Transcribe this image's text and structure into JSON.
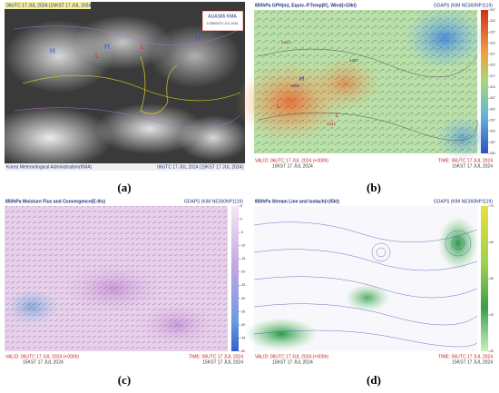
{
  "panels": [
    {
      "label": "(a)",
      "header_left": "06UTC 17 JUL 2024 (15KST 17 JUL 2024)",
      "header_right": "AUAS85 KMA",
      "header_right_2": "170600UTC JUL 2024",
      "footer_left": "Korea Meteorological Administration(KMA)",
      "footer_right": "06UTC 17 JUL 2024 (15KST 17 JUL 2024)",
      "map_labels": [
        "H",
        "L",
        "H",
        "L",
        "H"
      ]
    },
    {
      "label": "(b)",
      "title": "850hPa GPH(m), Equiv.-P.Temp(K), Wind(>10kt)",
      "model": "GDAPS (KIM NE360NP1119)",
      "valid": "VALID: 06UTC 17 JUL 2024 (+000h)",
      "valid_kst": "15KST 17 JUL 2024",
      "time": "TIME: 06UTC 17 JUL 2024",
      "time_kst": "15KST 17 JUL 2024",
      "map_labels": [
        "H",
        "L",
        "1500",
        "1414",
        "1497",
        "L",
        "1441"
      ],
      "colorbar": [
        347,
        342,
        337,
        332,
        327,
        322,
        317,
        312,
        307,
        302,
        297,
        292,
        287,
        282
      ]
    },
    {
      "label": "(c)",
      "title": "850hPa Moisture Flux and Convergence(E-9/s)",
      "model": "GDAPS (KIM NE360NP1119)",
      "valid": "VALID: 06UTC 17 JUL 2024 (+000h)",
      "valid_kst": "15KST 17 JUL 2024",
      "time": "TIME: 06UTC 17 JUL 2024",
      "time_kst": "15KST 17 JUL 2024",
      "colorbar": [
        5,
        0,
        -5,
        -10,
        -15,
        -20,
        -25,
        -30,
        -35,
        -40,
        -45,
        -50
      ]
    },
    {
      "label": "(d)",
      "title": "850hPa Stream Line and Isotach(>25kt)",
      "model": "GDAPS (KIM NE360NP1119)",
      "valid": "VALID: 06UTC 17 JUL 2024 (+000h)",
      "valid_kst": "15KST 17 JUL 2024",
      "time": "TIME: 06UTC 17 JUL 2024",
      "time_kst": "15KST 17 JUL 2024",
      "colorbar": [
        70,
        60,
        50,
        40,
        30
      ]
    }
  ]
}
